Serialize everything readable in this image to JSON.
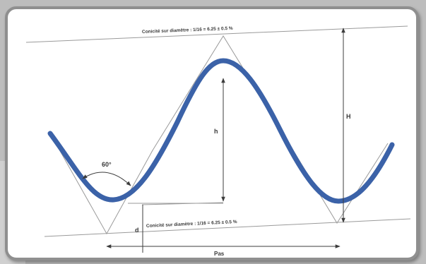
{
  "labels": {
    "top_conicity": "Conicité sur diamètre : 1/16 = 6.25 ± 0.5 %",
    "bottom_conicity": "Conicité sur diamètre : 1/16 = 6.25 ± 0.5 %",
    "angle": "60°",
    "h": "h",
    "H": "H",
    "d": "d",
    "pitch": "Pas"
  },
  "colors": {
    "wave": "#3b62a8",
    "frame": "#8f8f8f",
    "text": "#3a3a3a"
  }
}
